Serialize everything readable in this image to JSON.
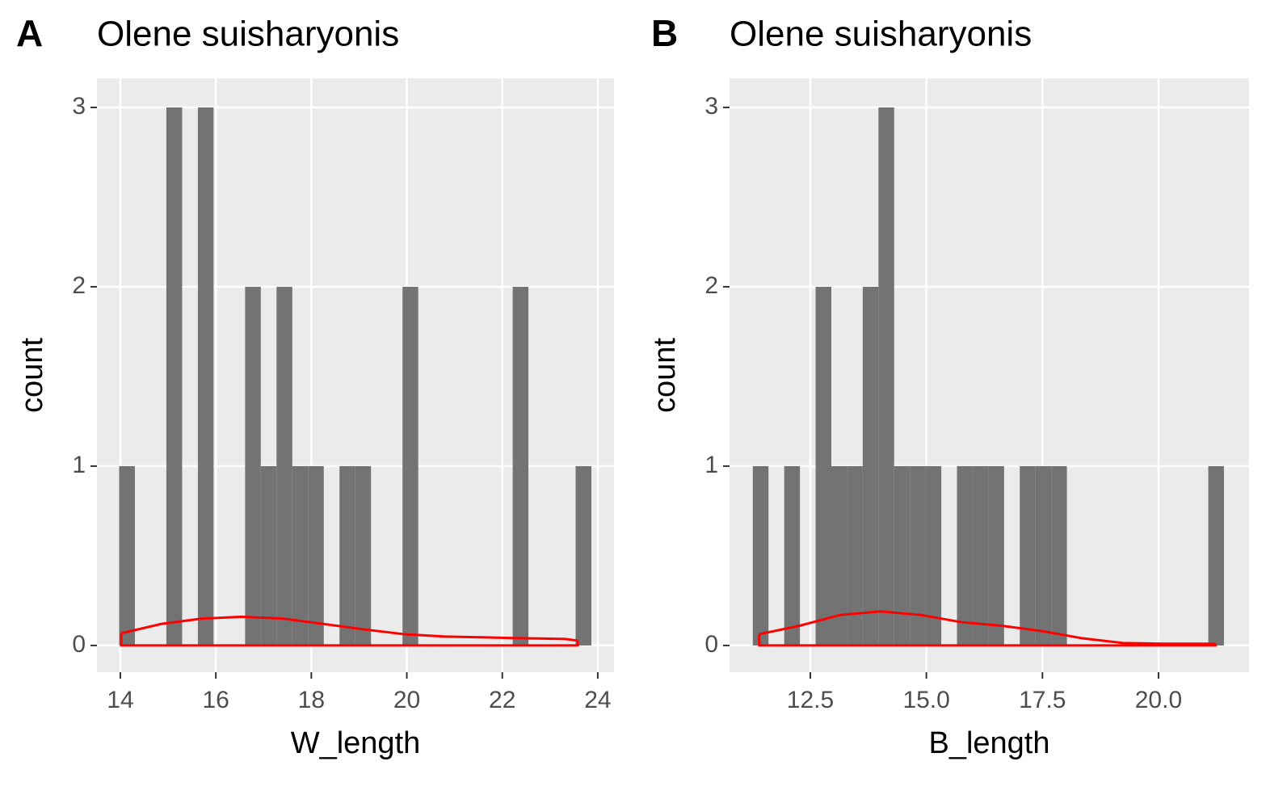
{
  "chart_data": [
    {
      "type": "histogram",
      "tag": "A",
      "title": "Olene suisharyonis",
      "x_label": "W_length",
      "y_label": "count",
      "bins": [
        13.975,
        14.305,
        14.634,
        14.964,
        15.294,
        15.624,
        15.953,
        16.283,
        16.613,
        16.942,
        17.272,
        17.602,
        17.931,
        18.261,
        18.591,
        18.921,
        19.25,
        19.58,
        19.91,
        20.239,
        20.569,
        20.899,
        21.228,
        21.558,
        21.888,
        22.218,
        22.547,
        22.877,
        23.207,
        23.536,
        23.866
      ],
      "values": [
        1,
        0,
        0,
        3,
        0,
        3,
        0,
        0,
        2,
        1,
        2,
        1,
        1,
        0,
        1,
        1,
        0,
        0,
        2,
        0,
        0,
        0,
        0,
        0,
        0,
        2,
        0,
        0,
        0,
        1
      ],
      "color": "#737373",
      "lines": [
        {
          "color": "#ff0000",
          "x": [
            14.02,
            14.86,
            15.71,
            16.55,
            17.4,
            18.25,
            19.09,
            19.94,
            20.79,
            21.63,
            22.48,
            23.32,
            23.58
          ],
          "values": [
            0.068,
            0.12,
            0.15,
            0.16,
            0.15,
            0.12,
            0.09,
            0.063,
            0.05,
            0.045,
            0.04,
            0.036,
            0.027
          ]
        }
      ],
      "xlim": [
        13.51,
        24.34
      ],
      "xticks": [
        14,
        16,
        18,
        20,
        22,
        24
      ],
      "ylim": [
        -0.149,
        3.162
      ],
      "yticks": [
        0,
        1,
        2,
        3
      ],
      "grid": true
    },
    {
      "type": "histogram",
      "tag": "B",
      "title": "Olene suisharyonis",
      "x_label": "B_length",
      "y_label": "count",
      "bins": [
        11.261,
        11.599,
        11.938,
        12.276,
        12.614,
        12.953,
        13.291,
        13.629,
        13.968,
        14.306,
        14.644,
        14.982,
        15.321,
        15.659,
        15.997,
        16.336,
        16.674,
        17.012,
        17.351,
        17.689,
        18.027,
        18.366,
        18.704,
        19.042,
        19.381,
        19.719,
        20.057,
        20.395,
        20.734,
        21.072,
        21.41
      ],
      "values": [
        1,
        0,
        1,
        0,
        2,
        1,
        1,
        2,
        3,
        1,
        1,
        1,
        0,
        1,
        1,
        1,
        0,
        1,
        1,
        1,
        0,
        0,
        0,
        0,
        0,
        0,
        0,
        0,
        0,
        1
      ],
      "color": "#737373",
      "lines": [
        {
          "color": "#ff0000",
          "x": [
            11.4,
            12.27,
            13.14,
            14.01,
            14.88,
            15.75,
            16.62,
            17.49,
            18.36,
            19.23,
            20.1,
            21.23
          ],
          "values": [
            0.063,
            0.11,
            0.17,
            0.19,
            0.17,
            0.13,
            0.11,
            0.08,
            0.04,
            0.014,
            0.01,
            0.01
          ]
        }
      ],
      "xlim": [
        10.76,
        21.95
      ],
      "xticks": [
        {
          "value": 12.5,
          "label": "12.5"
        },
        {
          "value": 15,
          "label": "15.0"
        },
        {
          "value": 17.5,
          "label": "17.5"
        },
        {
          "value": 20,
          "label": "20.0"
        }
      ],
      "ylim": [
        -0.149,
        3.162
      ],
      "yticks": [
        0,
        1,
        2,
        3
      ],
      "grid": true
    }
  ]
}
